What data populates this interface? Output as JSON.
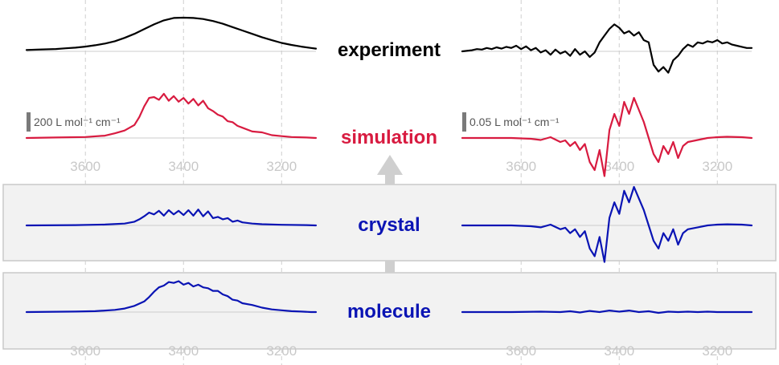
{
  "colors": {
    "experiment": "#000000",
    "simulation": "#d81b40",
    "model": "#0a14b4",
    "panel_bg": "#f2f2f2",
    "panel_border": "#c9c9c9",
    "grid": "#cfcfcf",
    "baseline": "#cccccc",
    "tick_text": "#c8c8c8",
    "arrow": "#cfcfcf",
    "scale_bar": "#7a7a7a"
  },
  "chart_data": [
    {
      "type": "line",
      "panel": "left",
      "x_reversed": true,
      "xlim": [
        3720,
        3130
      ],
      "x_ticks": [
        3600,
        3400,
        3200
      ],
      "tick_labels": [
        "3600",
        "3400",
        "3200"
      ],
      "gridlines_x": [
        3600,
        3400,
        3200
      ],
      "scale_bar_label": "200 L mol⁻¹ cm⁻¹",
      "series": [
        {
          "name": "experiment",
          "x": [
            3720,
            3700,
            3680,
            3660,
            3640,
            3620,
            3600,
            3580,
            3560,
            3540,
            3520,
            3500,
            3480,
            3460,
            3440,
            3420,
            3400,
            3380,
            3360,
            3340,
            3320,
            3300,
            3280,
            3260,
            3240,
            3220,
            3200,
            3180,
            3160,
            3140,
            3130
          ],
          "y": [
            0.04,
            0.05,
            0.06,
            0.07,
            0.09,
            0.11,
            0.14,
            0.18,
            0.23,
            0.3,
            0.4,
            0.52,
            0.66,
            0.8,
            0.92,
            0.99,
            1.0,
            0.99,
            0.96,
            0.9,
            0.82,
            0.72,
            0.62,
            0.52,
            0.42,
            0.33,
            0.25,
            0.19,
            0.14,
            0.1,
            0.08
          ]
        },
        {
          "name": "simulation",
          "x": [
            3720,
            3660,
            3600,
            3560,
            3540,
            3520,
            3500,
            3490,
            3480,
            3470,
            3460,
            3450,
            3440,
            3430,
            3420,
            3410,
            3400,
            3390,
            3380,
            3370,
            3360,
            3350,
            3340,
            3330,
            3320,
            3310,
            3300,
            3290,
            3280,
            3260,
            3240,
            3220,
            3200,
            3180,
            3150,
            3130
          ],
          "y": [
            0.0,
            0.01,
            0.02,
            0.05,
            0.1,
            0.16,
            0.28,
            0.45,
            0.68,
            0.86,
            0.88,
            0.82,
            0.95,
            0.8,
            0.9,
            0.78,
            0.86,
            0.74,
            0.84,
            0.7,
            0.8,
            0.64,
            0.58,
            0.5,
            0.46,
            0.36,
            0.34,
            0.26,
            0.22,
            0.14,
            0.12,
            0.06,
            0.04,
            0.02,
            0.01,
            0.0
          ]
        },
        {
          "name": "crystal",
          "x": [
            3720,
            3620,
            3560,
            3520,
            3500,
            3490,
            3480,
            3470,
            3460,
            3450,
            3440,
            3430,
            3420,
            3410,
            3400,
            3390,
            3380,
            3370,
            3360,
            3350,
            3340,
            3330,
            3320,
            3310,
            3300,
            3290,
            3280,
            3260,
            3240,
            3200,
            3150,
            3130
          ],
          "y": [
            0.0,
            0.01,
            0.03,
            0.06,
            0.12,
            0.2,
            0.3,
            0.42,
            0.36,
            0.48,
            0.32,
            0.5,
            0.36,
            0.48,
            0.34,
            0.5,
            0.32,
            0.52,
            0.3,
            0.46,
            0.24,
            0.28,
            0.2,
            0.24,
            0.12,
            0.16,
            0.1,
            0.06,
            0.04,
            0.02,
            0.01,
            0.0
          ]
        },
        {
          "name": "molecule",
          "x": [
            3720,
            3620,
            3580,
            3540,
            3520,
            3500,
            3480,
            3470,
            3460,
            3450,
            3440,
            3430,
            3420,
            3410,
            3400,
            3390,
            3380,
            3370,
            3360,
            3350,
            3340,
            3330,
            3320,
            3310,
            3300,
            3290,
            3280,
            3260,
            3240,
            3220,
            3200,
            3180,
            3160,
            3140,
            3130
          ],
          "y": [
            0.0,
            0.01,
            0.02,
            0.05,
            0.08,
            0.14,
            0.24,
            0.34,
            0.46,
            0.56,
            0.6,
            0.68,
            0.66,
            0.7,
            0.62,
            0.66,
            0.58,
            0.62,
            0.56,
            0.54,
            0.48,
            0.48,
            0.4,
            0.36,
            0.28,
            0.26,
            0.2,
            0.16,
            0.1,
            0.06,
            0.04,
            0.02,
            0.01,
            0.0,
            0.0
          ]
        }
      ]
    },
    {
      "type": "line",
      "panel": "right",
      "x_reversed": true,
      "xlim": [
        3720,
        3130
      ],
      "x_ticks": [
        3600,
        3400,
        3200
      ],
      "tick_labels": [
        "3600",
        "3400",
        "3200"
      ],
      "gridlines_x": [
        3600,
        3400,
        3200
      ],
      "scale_bar_label": "0.05 L mol⁻¹ cm⁻¹",
      "series": [
        {
          "name": "experiment",
          "x": [
            3720,
            3700,
            3690,
            3680,
            3670,
            3660,
            3650,
            3640,
            3630,
            3620,
            3610,
            3600,
            3590,
            3580,
            3570,
            3560,
            3550,
            3540,
            3530,
            3520,
            3510,
            3500,
            3490,
            3480,
            3470,
            3460,
            3450,
            3440,
            3430,
            3420,
            3410,
            3400,
            3390,
            3380,
            3370,
            3360,
            3350,
            3340,
            3330,
            3320,
            3310,
            3300,
            3290,
            3280,
            3270,
            3260,
            3250,
            3240,
            3230,
            3220,
            3210,
            3200,
            3190,
            3180,
            3170,
            3160,
            3150,
            3140,
            3130
          ],
          "y": [
            0.0,
            0.05,
            0.1,
            0.08,
            0.15,
            0.1,
            0.18,
            0.12,
            0.2,
            0.15,
            0.25,
            0.1,
            0.22,
            0.05,
            0.15,
            -0.05,
            0.05,
            -0.15,
            0.08,
            -0.1,
            0.0,
            -0.2,
            0.1,
            -0.15,
            0.0,
            -0.25,
            -0.05,
            0.4,
            0.7,
            1.0,
            1.2,
            1.05,
            0.8,
            0.9,
            0.7,
            0.85,
            0.5,
            0.4,
            -0.6,
            -0.9,
            -0.7,
            -0.95,
            -0.4,
            -0.2,
            0.1,
            0.3,
            0.2,
            0.4,
            0.35,
            0.45,
            0.4,
            0.5,
            0.35,
            0.4,
            0.3,
            0.25,
            0.2,
            0.15,
            0.15
          ]
        },
        {
          "name": "simulation",
          "x": [
            3720,
            3620,
            3580,
            3560,
            3540,
            3520,
            3510,
            3500,
            3490,
            3480,
            3470,
            3460,
            3450,
            3440,
            3430,
            3420,
            3410,
            3400,
            3390,
            3380,
            3370,
            3360,
            3350,
            3340,
            3330,
            3320,
            3310,
            3300,
            3290,
            3280,
            3270,
            3260,
            3240,
            3220,
            3200,
            3180,
            3150,
            3130
          ],
          "y": [
            0.0,
            0.0,
            -0.02,
            -0.05,
            0.02,
            -0.1,
            -0.06,
            -0.2,
            -0.1,
            -0.3,
            -0.15,
            -0.6,
            -0.8,
            -0.3,
            -0.95,
            0.2,
            0.6,
            0.3,
            0.9,
            0.6,
            1.0,
            0.7,
            0.4,
            0.0,
            -0.4,
            -0.6,
            -0.2,
            -0.4,
            -0.1,
            -0.5,
            -0.2,
            -0.1,
            -0.05,
            0.0,
            0.02,
            0.03,
            0.02,
            0.0
          ]
        },
        {
          "name": "crystal",
          "x": [
            3720,
            3620,
            3580,
            3560,
            3540,
            3520,
            3510,
            3500,
            3490,
            3480,
            3470,
            3460,
            3450,
            3440,
            3430,
            3420,
            3410,
            3400,
            3390,
            3380,
            3370,
            3360,
            3350,
            3340,
            3330,
            3320,
            3310,
            3300,
            3290,
            3280,
            3270,
            3260,
            3240,
            3220,
            3200,
            3180,
            3150,
            3130
          ],
          "y": [
            0.0,
            0.0,
            -0.02,
            -0.05,
            0.02,
            -0.1,
            -0.06,
            -0.2,
            -0.1,
            -0.3,
            -0.15,
            -0.6,
            -0.8,
            -0.3,
            -0.95,
            0.2,
            0.6,
            0.3,
            0.9,
            0.6,
            1.0,
            0.7,
            0.4,
            0.0,
            -0.4,
            -0.6,
            -0.2,
            -0.4,
            -0.1,
            -0.5,
            -0.2,
            -0.1,
            -0.05,
            0.0,
            0.02,
            0.03,
            0.02,
            0.0
          ]
        },
        {
          "name": "molecule",
          "x": [
            3720,
            3620,
            3560,
            3520,
            3500,
            3480,
            3460,
            3440,
            3420,
            3400,
            3380,
            3360,
            3340,
            3320,
            3300,
            3280,
            3260,
            3240,
            3220,
            3200,
            3160,
            3130
          ],
          "y": [
            0.0,
            0.0,
            0.01,
            0.0,
            0.02,
            -0.01,
            0.03,
            0.0,
            0.04,
            0.01,
            0.04,
            0.0,
            0.02,
            -0.02,
            0.01,
            0.0,
            0.01,
            0.0,
            0.01,
            0.0,
            0.0,
            0.0
          ]
        }
      ]
    }
  ],
  "labels": {
    "experiment": "experiment",
    "simulation": "simulation",
    "crystal": "crystal",
    "molecule": "molecule"
  }
}
